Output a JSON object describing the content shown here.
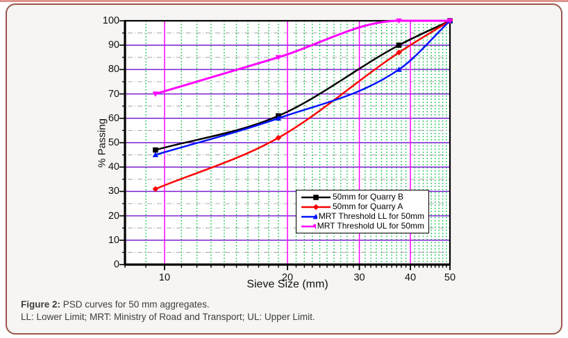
{
  "page": {
    "top_divider_color": "#df958e",
    "card_border_color": "#9a564a",
    "card_background": "#f6f5f3"
  },
  "figure": {
    "caption_label": "Figure 2:",
    "caption_text": " PSD curves for 50 mm aggregates.",
    "caption_definitions": "LL: Lower Limit; MRT: Ministry of Road and Transport; UL: Upper Limit."
  },
  "chart_data": {
    "type": "line",
    "title": "",
    "xlabel": "Sieve Size (mm)",
    "ylabel": "% Passing",
    "x_scale": "log",
    "xlim": [
      8,
      50
    ],
    "ylim": [
      0,
      100
    ],
    "x_major_ticks": [
      10,
      20,
      30,
      40,
      50
    ],
    "y_major_ticks": [
      0,
      10,
      20,
      30,
      40,
      50,
      60,
      70,
      80,
      90,
      100
    ],
    "x": [
      9.5,
      19,
      37.5,
      50
    ],
    "series": [
      {
        "name": "50mm for Quarry B",
        "color": "#000000",
        "marker": "square",
        "values": [
          47,
          61,
          90,
          100
        ]
      },
      {
        "name": "50mm for Quarry A",
        "color": "#fe0000",
        "marker": "diamond",
        "values": [
          31,
          52,
          87,
          100
        ]
      },
      {
        "name": "MRT Threshold LL for 50mm",
        "color": "#0014ff",
        "marker": "triangle-up",
        "values": [
          45,
          60,
          80,
          100
        ]
      },
      {
        "name": "MRT Threshold UL for 50mm",
        "color": "#ff00ff",
        "marker": "triangle-down",
        "values": [
          70,
          85,
          100,
          100
        ]
      }
    ],
    "grid": {
      "h_major_color": "#7a1fd0",
      "h_minor_color": "#adadad",
      "v_major_color": "#ff00ff",
      "v_minor_color": "#00be3c",
      "minor_y_step": 5,
      "minor_x_step": 1,
      "grid_on": true
    },
    "legend_position": "inside lower right",
    "plot_background": "#ffffff"
  }
}
